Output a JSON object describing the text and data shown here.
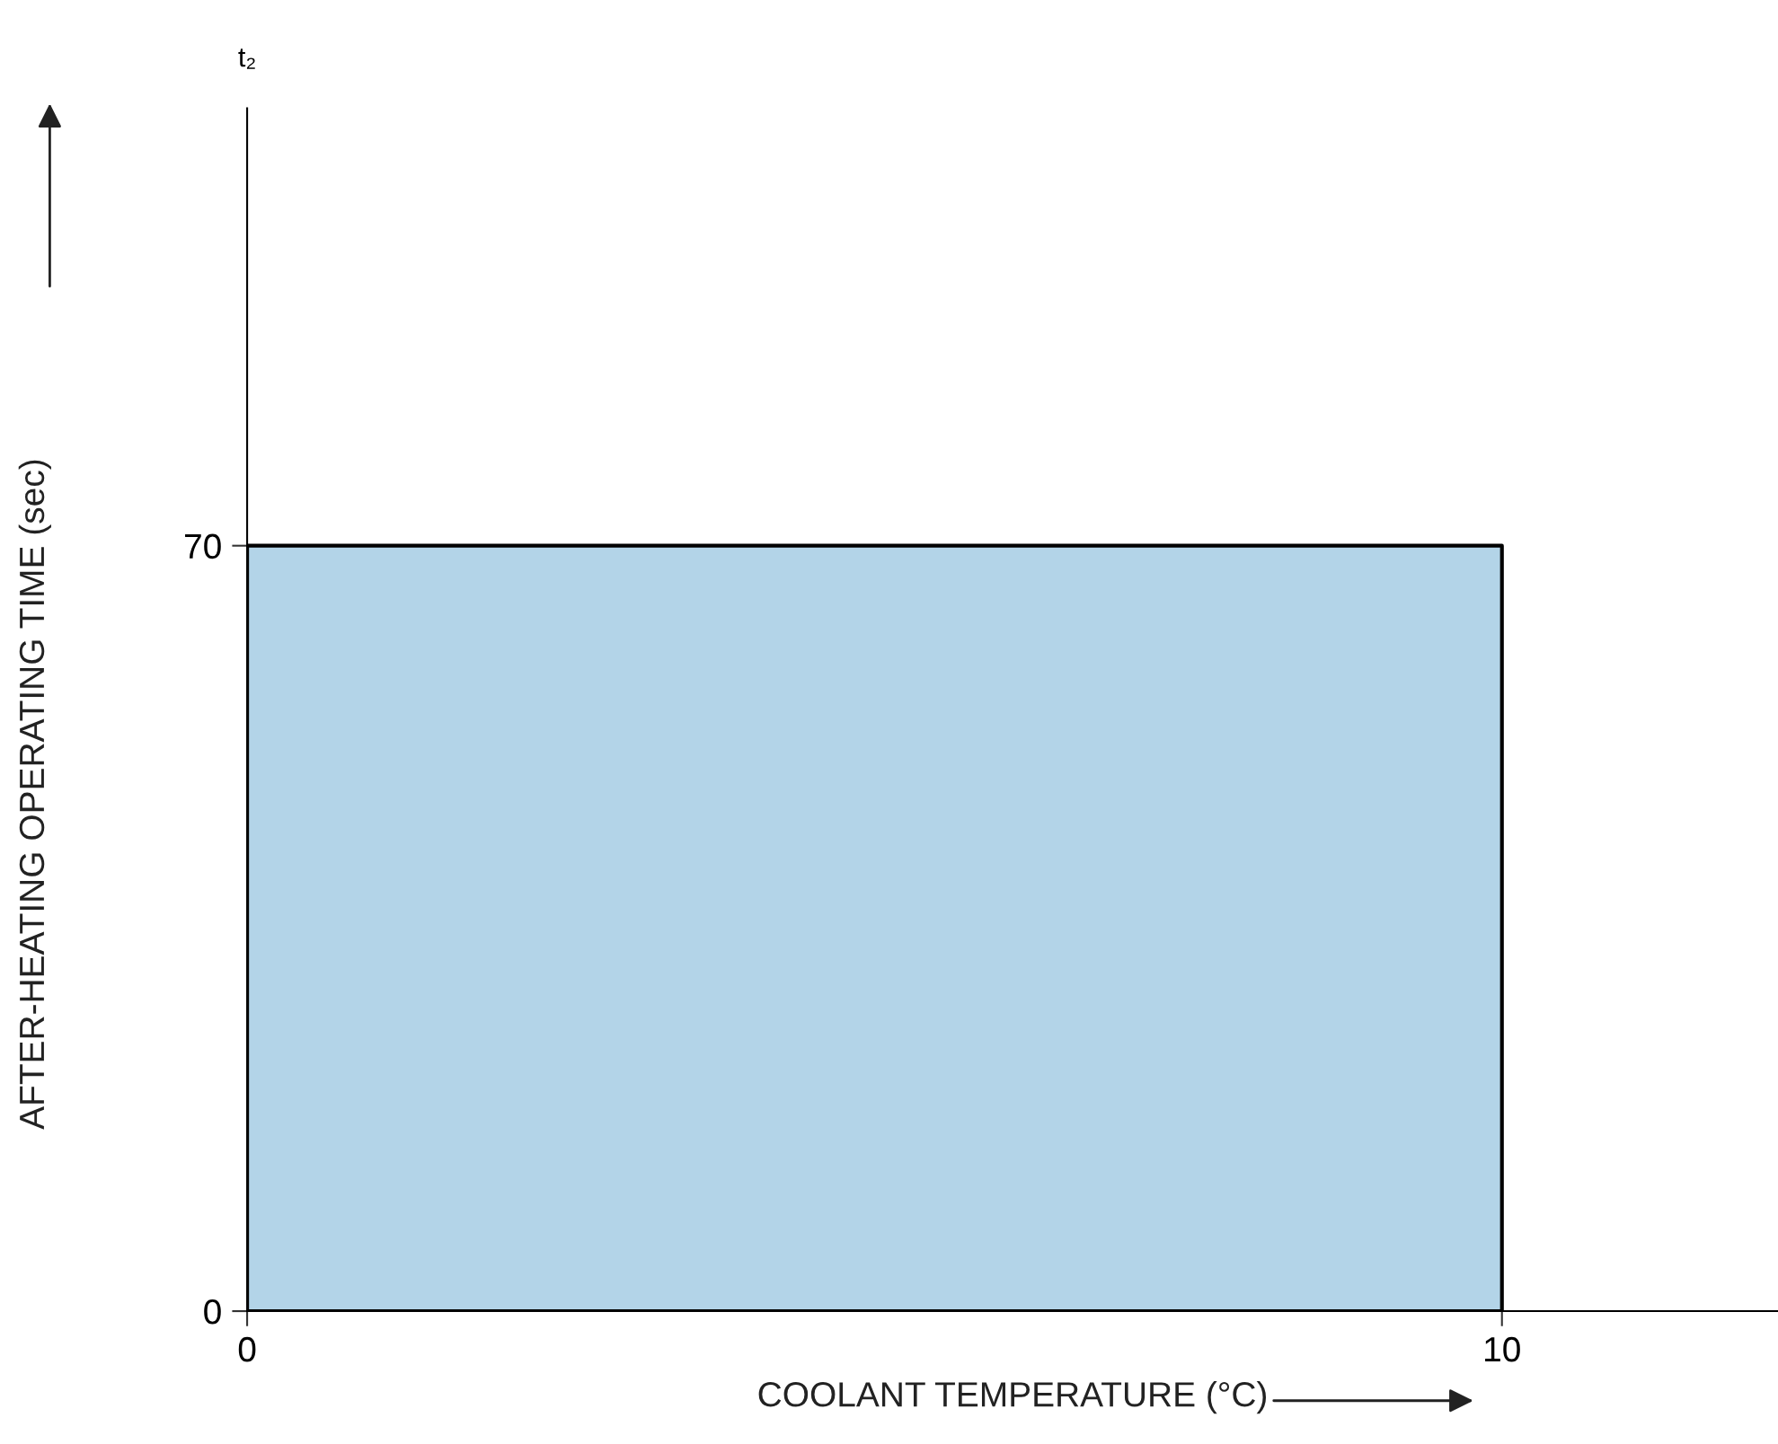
{
  "chart_data": {
    "type": "area",
    "xlabel": "COOLANT TEMPERATURE (°C)",
    "ylabel": "AFTER-HEATING OPERATING TIME (sec)",
    "annotations": [
      "t₂"
    ],
    "x": [
      0,
      10
    ],
    "series": [
      {
        "color": "#b3d4e8",
        "values": [
          70,
          70
        ]
      }
    ],
    "xlim": [
      0,
      12.2
    ],
    "ylim": [
      0,
      110
    ],
    "xticks": [
      0,
      10
    ],
    "yticks": [
      0,
      70
    ],
    "grid": false,
    "legend": false
  }
}
